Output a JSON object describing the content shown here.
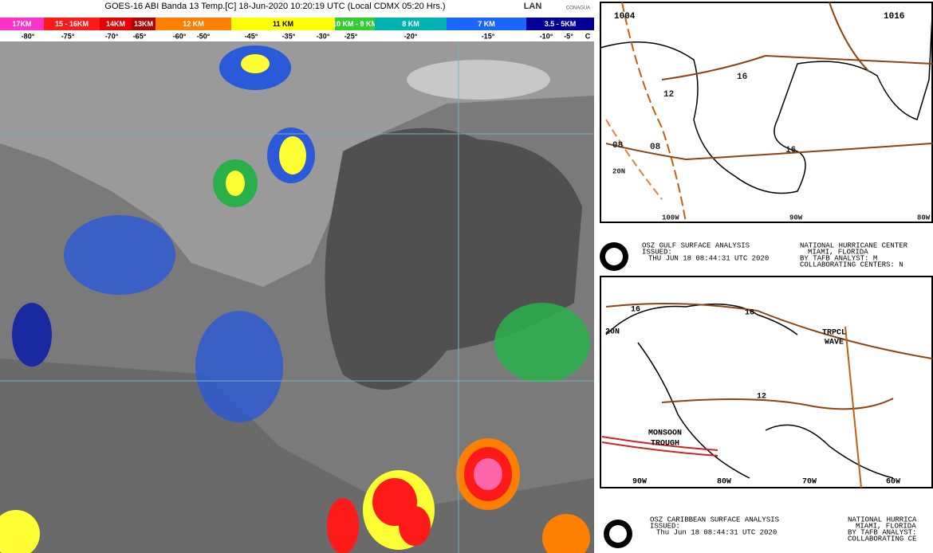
{
  "header": {
    "title": "GOES-16 ABI Banda 13 Temp.[C] 18-Jun-2020 10:20:19 UTC (Local CDMX  05:20 Hrs.)",
    "logo_left": "LAN",
    "logo_right": "CONAGUA"
  },
  "legend": {
    "bands": [
      {
        "label": "17KM",
        "color": "#ff33cc"
      },
      {
        "label": "15 - 16KM",
        "color": "#ff1a1a"
      },
      {
        "label": "14KM",
        "color": "#e60000"
      },
      {
        "label": "13KM",
        "color": "#b30000"
      },
      {
        "label": "12 KM",
        "color": "#ff8000"
      },
      {
        "label": "11 KM",
        "color": "#ffff00"
      },
      {
        "label": "10 KM - 9 KM",
        "color": "#33cc33"
      },
      {
        "label": "8 KM",
        "color": "#00b3b3"
      },
      {
        "label": "7 KM",
        "color": "#1a66ff"
      },
      {
        "label": "3.5 - 5KM",
        "color": "#000099"
      }
    ],
    "temps": [
      "-80°",
      "-75°",
      "-70°",
      "-65°",
      "-60°",
      "-50°",
      "-45°",
      "-35°",
      "-30°",
      "-25°",
      "-20°",
      "-15°",
      "-10°",
      "-5°",
      "C"
    ]
  },
  "gulf_map": {
    "labels": [
      "1004",
      "1016",
      "12",
      "16",
      "08",
      "08",
      "16",
      "20N",
      "100W",
      "90W",
      "80W"
    ],
    "caption": {
      "product": "OSZ GULF SURFACE ANALYSIS",
      "issued": "ISSUED:",
      "time": "THU JUN 18 08:44:31 UTC 2020",
      "center": "NATIONAL HURRICANE CENTER",
      "city": "MIAMI, FLORIDA",
      "analyst": "BY TAFB ANALYST: M",
      "collab": "COLLABORATING CENTERS: N"
    }
  },
  "caribbean_map": {
    "labels": [
      "16",
      "16",
      "20N",
      "TRPCL",
      "WAVE",
      "12",
      "MONSOON",
      "TROUGH",
      "90W",
      "80W",
      "70W",
      "60W"
    ],
    "caption": {
      "product": "OSZ CARIBBEAN SURFACE ANALYSIS",
      "issued": "ISSUED:",
      "time": "Thu Jun 18 08:44:31 UTC 2020",
      "center": "NATIONAL HURRICA",
      "city": "MIAMI, FLORIDA",
      "analyst": "BY TAFB ANALYST:",
      "collab": "COLLABORATING CE"
    }
  }
}
